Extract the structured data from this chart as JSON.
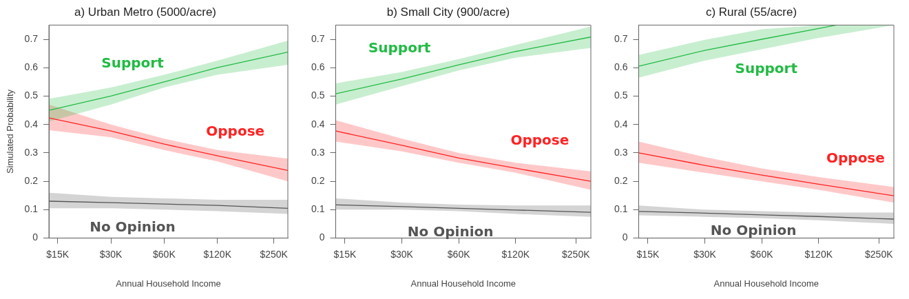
{
  "chart_data": [
    {
      "type": "line",
      "title": "a) Urban Metro (5000/acre)",
      "xlabel": "Annual Household Income",
      "ylabel": "Simulated Probability",
      "log": "x",
      "grid": false,
      "legend": false,
      "xlim": [
        13.4,
        300
      ],
      "xticks": [
        {
          "value": 15,
          "label": "$15K"
        },
        {
          "value": 30,
          "label": "$30K"
        },
        {
          "value": 60,
          "label": "$60K"
        },
        {
          "value": 120,
          "label": "$120K"
        },
        {
          "value": 250,
          "label": "$250K"
        }
      ],
      "ylim": [
        0,
        0.75
      ],
      "yticks": [
        0,
        0.1,
        0.2,
        0.3,
        0.4,
        0.5,
        0.6,
        0.7
      ],
      "series": [
        {
          "name": "Support",
          "color": "#22bb44",
          "x": [
            13.4,
            30,
            60,
            120,
            300
          ],
          "values": [
            0.45,
            0.5,
            0.55,
            0.6,
            0.655
          ],
          "lower": [
            0.41,
            0.47,
            0.53,
            0.575,
            0.61
          ],
          "upper": [
            0.49,
            0.53,
            0.575,
            0.625,
            0.695
          ]
        },
        {
          "name": "Oppose",
          "color": "#ff2222",
          "x": [
            13.4,
            30,
            60,
            120,
            300
          ],
          "values": [
            0.423,
            0.377,
            0.331,
            0.29,
            0.238
          ],
          "lower": [
            0.38,
            0.355,
            0.31,
            0.27,
            0.2
          ],
          "upper": [
            0.47,
            0.4,
            0.35,
            0.31,
            0.28
          ]
        },
        {
          "name": "No Opinion",
          "color": "#555555",
          "x": [
            13.4,
            30,
            60,
            120,
            300
          ],
          "values": [
            0.13,
            0.125,
            0.12,
            0.115,
            0.105
          ],
          "lower": [
            0.105,
            0.105,
            0.1,
            0.095,
            0.085
          ],
          "upper": [
            0.16,
            0.145,
            0.14,
            0.135,
            0.135
          ]
        }
      ]
    },
    {
      "type": "line",
      "title": "b) Small City (900/acre)",
      "xlabel": "Annual Household Income",
      "log": "x",
      "grid": false,
      "legend": false,
      "xlim": [
        13.4,
        300
      ],
      "xticks": [
        {
          "value": 15,
          "label": "$15K"
        },
        {
          "value": 30,
          "label": "$30K"
        },
        {
          "value": 60,
          "label": "$60K"
        },
        {
          "value": 120,
          "label": "$120K"
        },
        {
          "value": 250,
          "label": "$250K"
        }
      ],
      "ylim": [
        0,
        0.75
      ],
      "yticks": [
        0,
        0.1,
        0.2,
        0.3,
        0.4,
        0.5,
        0.6,
        0.7
      ],
      "series": [
        {
          "name": "Support",
          "color": "#22bb44",
          "x": [
            13.4,
            30,
            60,
            120,
            300
          ],
          "values": [
            0.508,
            0.56,
            0.61,
            0.657,
            0.708
          ],
          "lower": [
            0.47,
            0.535,
            0.59,
            0.635,
            0.67
          ],
          "upper": [
            0.545,
            0.585,
            0.63,
            0.68,
            0.745
          ]
        },
        {
          "name": "Oppose",
          "color": "#ff2222",
          "x": [
            13.4,
            30,
            60,
            120,
            300
          ],
          "values": [
            0.377,
            0.327,
            0.282,
            0.246,
            0.2
          ],
          "lower": [
            0.34,
            0.305,
            0.265,
            0.23,
            0.17
          ],
          "upper": [
            0.415,
            0.35,
            0.3,
            0.265,
            0.235
          ]
        },
        {
          "name": "No Opinion",
          "color": "#555555",
          "x": [
            13.4,
            30,
            60,
            120,
            300
          ],
          "values": [
            0.117,
            0.111,
            0.105,
            0.099,
            0.091
          ],
          "lower": [
            0.1,
            0.1,
            0.095,
            0.085,
            0.075
          ],
          "upper": [
            0.14,
            0.125,
            0.118,
            0.115,
            0.115
          ]
        }
      ]
    },
    {
      "type": "line",
      "title": "c) Rural (55/acre)",
      "xlabel": "Annual Household Income",
      "log": "x",
      "grid": false,
      "legend": false,
      "xlim": [
        13.4,
        300
      ],
      "xticks": [
        {
          "value": 15,
          "label": "$15K"
        },
        {
          "value": 30,
          "label": "$30K"
        },
        {
          "value": 60,
          "label": "$60K"
        },
        {
          "value": 120,
          "label": "$120K"
        },
        {
          "value": 250,
          "label": "$250K"
        }
      ],
      "ylim": [
        0,
        0.75
      ],
      "yticks": [
        0,
        0.1,
        0.2,
        0.3,
        0.4,
        0.5,
        0.6,
        0.7
      ],
      "series": [
        {
          "name": "Support",
          "color": "#22bb44",
          "x": [
            13.4,
            30,
            60,
            120,
            149,
            300
          ],
          "values": [
            0.605,
            0.661,
            0.7,
            0.738,
            0.75,
            null
          ],
          "lower": [
            0.565,
            0.625,
            0.665,
            0.705,
            0.715,
            0.75
          ],
          "upper": [
            0.645,
            0.698,
            0.735,
            0.75,
            0.75,
            0.75
          ]
        },
        {
          "name": "Oppose",
          "color": "#ff2222",
          "x": [
            13.4,
            30,
            60,
            120,
            300
          ],
          "values": [
            0.3,
            0.256,
            0.222,
            0.19,
            0.149
          ],
          "lower": [
            0.265,
            0.23,
            0.2,
            0.17,
            0.125
          ],
          "upper": [
            0.34,
            0.285,
            0.245,
            0.215,
            0.18
          ]
        },
        {
          "name": "No Opinion",
          "color": "#555555",
          "x": [
            13.4,
            30,
            60,
            120,
            300
          ],
          "values": [
            0.094,
            0.088,
            0.082,
            0.076,
            0.067
          ],
          "lower": [
            0.08,
            0.075,
            0.07,
            0.063,
            0.05
          ],
          "upper": [
            0.115,
            0.1,
            0.095,
            0.09,
            0.09
          ]
        }
      ]
    }
  ]
}
